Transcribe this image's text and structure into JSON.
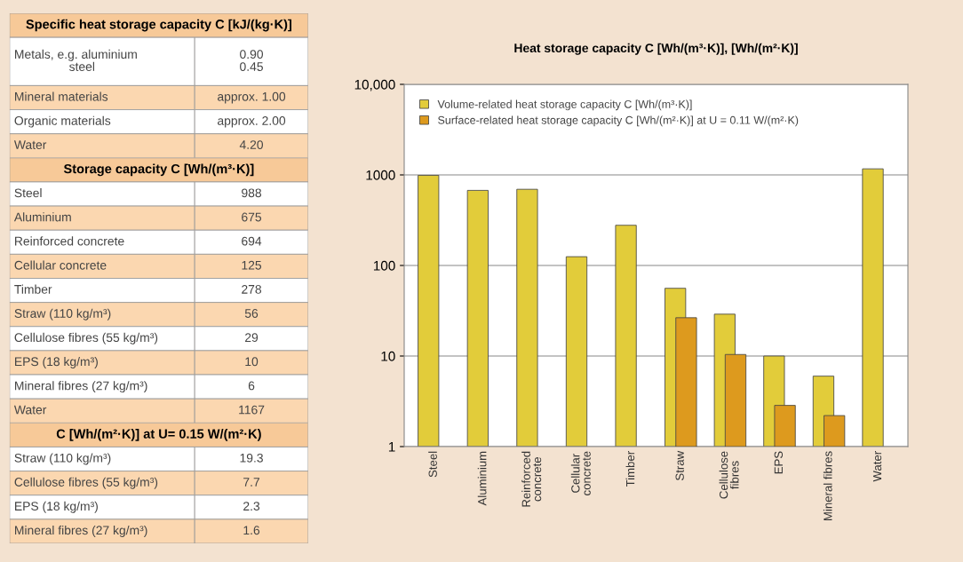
{
  "chart_data": [
    {
      "type": "other",
      "title": "Specific heat storage capacity C [kJ/(kg·K)]",
      "annotations": [
        "Metals, e.g. aluminium\n                steel",
        "0.90\n0.45",
        "Mineral materials",
        "approx. 1.00",
        "Organic materials",
        "approx. 2.00",
        "Water",
        "4.20"
      ]
    },
    {
      "type": "other",
      "title": "Storage capacity C [Wh/(m³·K)]",
      "annotations": [
        "Steel",
        "988",
        "Aluminium",
        "675",
        "Reinforced concrete",
        "694",
        "Cellular concrete",
        "125",
        "Timber",
        "278",
        "Straw (110 kg/m³)",
        "56",
        "Cellulose fibres (55 kg/m³)",
        "29",
        "EPS (18 kg/m³)",
        "10",
        "Mineral fibres (27 kg/m³)",
        "6",
        "Water",
        "1167"
      ]
    },
    {
      "type": "other",
      "title": "C [Wh/(m²·K)] at U= 0.15 W/(m²·K)",
      "annotations": [
        "Straw (110 kg/m³)",
        "19.3",
        "Cellulose fibres (55 kg/m³)",
        "7.7",
        "EPS (18 kg/m³)",
        "2.3",
        "Mineral fibres (27 kg/m³)",
        "1.6"
      ]
    },
    {
      "type": "bar",
      "title": "Heat storage capacity C [Wh/(m³·K)], [Wh/(m²·K)]",
      "log": "y",
      "grid": "y",
      "legend": "top left",
      "categories": [
        "Steel",
        "Aluminium",
        "Reinforced\nconcrete",
        "Cellular\nconcrete",
        "Timber",
        "Straw",
        "Cellulose\nfibres",
        "EPS",
        "Mineral fibres",
        "Water"
      ],
      "ylim": [
        1,
        10000
      ],
      "yticks": [
        1,
        10,
        100,
        1000,
        {
          "value": 10000,
          "label": "10,000"
        }
      ],
      "series": [
        {
          "name": "Volume-related heat storage capacity C [Wh/(m³·K)]",
          "color": "#e2cc3a",
          "values": [
            988,
            675,
            694,
            125,
            278,
            56,
            29,
            10,
            6,
            1167
          ]
        },
        {
          "name": "Surface-related heat storage capacity C [Wh/(m²·K)] at U = 0.11 W/(m²·K)",
          "color": "#dd9a1e",
          "values": [
            null,
            null,
            null,
            null,
            null,
            26.5,
            10.4,
            2.85,
            2.2,
            null
          ]
        }
      ]
    }
  ]
}
